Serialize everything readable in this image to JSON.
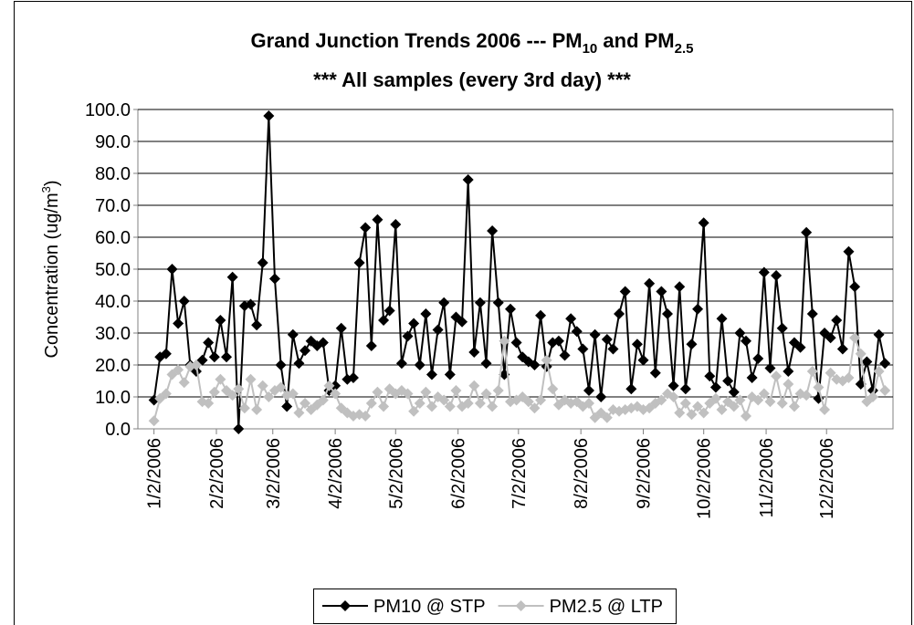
{
  "chart_data": {
    "type": "line",
    "title": [
      "Grand Junction Trends 2006 --- PM",
      "10",
      " and PM",
      "2.5"
    ],
    "subtitle": "*** All samples (every 3rd day) ***",
    "y_label": [
      "Concentration (ug/m",
      "3",
      ")"
    ],
    "x": [
      "1/2/2006",
      "1/5/2006",
      "1/8/2006",
      "1/11/2006",
      "1/14/2006",
      "1/17/2006",
      "1/20/2006",
      "1/23/2006",
      "1/26/2006",
      "1/29/2006",
      "2/1/2006",
      "2/4/2006",
      "2/7/2006",
      "2/10/2006",
      "2/13/2006",
      "2/16/2006",
      "2/19/2006",
      "2/22/2006",
      "2/25/2006",
      "2/28/2006",
      "3/3/2006",
      "3/6/2006",
      "3/9/2006",
      "3/12/2006",
      "3/15/2006",
      "3/18/2006",
      "3/21/2006",
      "3/24/2006",
      "3/27/2006",
      "3/30/2006",
      "4/2/2006",
      "4/5/2006",
      "4/8/2006",
      "4/11/2006",
      "4/14/2006",
      "4/17/2006",
      "4/20/2006",
      "4/23/2006",
      "4/26/2006",
      "4/29/2006",
      "5/2/2006",
      "5/5/2006",
      "5/8/2006",
      "5/11/2006",
      "5/14/2006",
      "5/17/2006",
      "5/20/2006",
      "5/23/2006",
      "5/26/2006",
      "5/29/2006",
      "6/1/2006",
      "6/4/2006",
      "6/7/2006",
      "6/10/2006",
      "6/13/2006",
      "6/16/2006",
      "6/19/2006",
      "6/22/2006",
      "6/25/2006",
      "6/28/2006",
      "7/1/2006",
      "7/4/2006",
      "7/7/2006",
      "7/10/2006",
      "7/13/2006",
      "7/16/2006",
      "7/19/2006",
      "7/22/2006",
      "7/25/2006",
      "7/28/2006",
      "7/31/2006",
      "8/3/2006",
      "8/6/2006",
      "8/9/2006",
      "8/12/2006",
      "8/15/2006",
      "8/18/2006",
      "8/21/2006",
      "8/24/2006",
      "8/27/2006",
      "8/30/2006",
      "9/2/2006",
      "9/5/2006",
      "9/8/2006",
      "9/11/2006",
      "9/14/2006",
      "9/17/2006",
      "9/20/2006",
      "9/23/2006",
      "9/26/2006",
      "9/29/2006",
      "10/2/2006",
      "10/5/2006",
      "10/8/2006",
      "10/11/2006",
      "10/14/2006",
      "10/17/2006",
      "10/20/2006",
      "10/23/2006",
      "10/26/2006",
      "10/29/2006",
      "11/1/2006",
      "11/4/2006",
      "11/7/2006",
      "11/10/2006",
      "11/13/2006",
      "11/16/2006",
      "11/19/2006",
      "11/22/2006",
      "11/25/2006",
      "11/28/2006",
      "12/1/2006",
      "12/4/2006",
      "12/7/2006",
      "12/10/2006",
      "12/13/2006",
      "12/16/2006",
      "12/19/2006",
      "12/22/2006",
      "12/25/2006",
      "12/28/2006",
      "12/31/2006"
    ],
    "series": [
      {
        "name": "PM10 @ STP",
        "color": "#000000",
        "values": [
          9,
          22.5,
          23.5,
          50,
          33,
          40,
          20,
          18,
          21.5,
          27,
          22.5,
          34,
          22.5,
          47.5,
          0,
          38.5,
          39,
          32.5,
          52,
          98,
          47,
          20,
          7,
          29.5,
          20.5,
          24.5,
          27.5,
          26,
          27,
          12,
          13.5,
          31.5,
          15.5,
          16,
          52,
          63,
          26,
          65.5,
          34,
          37,
          64,
          20.5,
          29,
          33,
          20,
          36,
          17,
          31,
          39.5,
          17,
          35,
          33.5,
          78,
          24,
          39.5,
          20.5,
          62,
          39.5,
          17,
          37.5,
          27,
          22.5,
          21,
          20,
          35.5,
          19.5,
          27,
          27.5,
          23,
          34.5,
          30.5,
          25,
          12,
          29.5,
          10,
          28,
          25,
          36,
          43,
          12.5,
          26.5,
          21.5,
          45.5,
          17.5,
          43,
          36,
          13.5,
          44.5,
          12.5,
          26.5,
          37.5,
          64.5,
          16.5,
          13,
          34.5,
          15,
          11.5,
          30,
          27.5,
          16,
          22,
          49,
          19,
          48,
          31.5,
          18,
          27,
          25.5,
          61.5,
          36,
          9.5,
          30,
          28.5,
          34,
          25,
          55.5,
          44.5,
          14,
          21,
          12,
          29.5,
          20.5
        ]
      },
      {
        "name": "PM2.5 @ LTP",
        "color": "#c0c0c0",
        "values": [
          2.5,
          9.5,
          11,
          17,
          18.5,
          14.5,
          19.5,
          20,
          8.5,
          8,
          11.5,
          15.5,
          12,
          10.5,
          12.5,
          6.5,
          15.5,
          6,
          13.5,
          10,
          12,
          13,
          10.5,
          11,
          5,
          8,
          6,
          7.5,
          9,
          13.5,
          11,
          6.5,
          5,
          4,
          4.5,
          4,
          8,
          11.5,
          7,
          12.5,
          11,
          12,
          11,
          5.5,
          8,
          11.5,
          7,
          10,
          9,
          7,
          12,
          7,
          8,
          13.5,
          8,
          11,
          7,
          12,
          27.5,
          8.5,
          9,
          10,
          8.5,
          6.5,
          9,
          21.5,
          12.5,
          7.5,
          9,
          8,
          8.5,
          7,
          8,
          3.5,
          5,
          3.5,
          6,
          5.5,
          6,
          6.5,
          7,
          6,
          6.5,
          8,
          9,
          11,
          10,
          5,
          8,
          4.5,
          7,
          5,
          8,
          9.5,
          6,
          8.5,
          7,
          9,
          4,
          10,
          9,
          11,
          8.5,
          16.5,
          8,
          14,
          7,
          11,
          10.5,
          18,
          13,
          6,
          17.5,
          15.5,
          15,
          16,
          28.5,
          23.5,
          8.5,
          10,
          18,
          12
        ]
      }
    ],
    "xlim": [
      "12/25/2005",
      "1/4/2007"
    ],
    "xticks": [
      "1/2/2006",
      "2/2/2006",
      "3/2/2006",
      "4/2/2006",
      "5/2/2006",
      "6/2/2006",
      "7/2/2006",
      "8/2/2006",
      "9/2/2006",
      "10/2/2006",
      "11/2/2006",
      "12/2/2006"
    ],
    "ylim": [
      0,
      100
    ],
    "yticks": [
      {
        "value": 0,
        "label": "0.0"
      },
      {
        "value": 10,
        "label": "10.0"
      },
      {
        "value": 20,
        "label": "20.0"
      },
      {
        "value": 30,
        "label": "30.0"
      },
      {
        "value": 40,
        "label": "40.0"
      },
      {
        "value": 50,
        "label": "50.0"
      },
      {
        "value": 60,
        "label": "60.0"
      },
      {
        "value": 70,
        "label": "70.0"
      },
      {
        "value": 80,
        "label": "80.0"
      },
      {
        "value": 90,
        "label": "90.0"
      },
      {
        "value": 100,
        "label": "100.0"
      }
    ],
    "grid": true,
    "legend": "bottom"
  }
}
